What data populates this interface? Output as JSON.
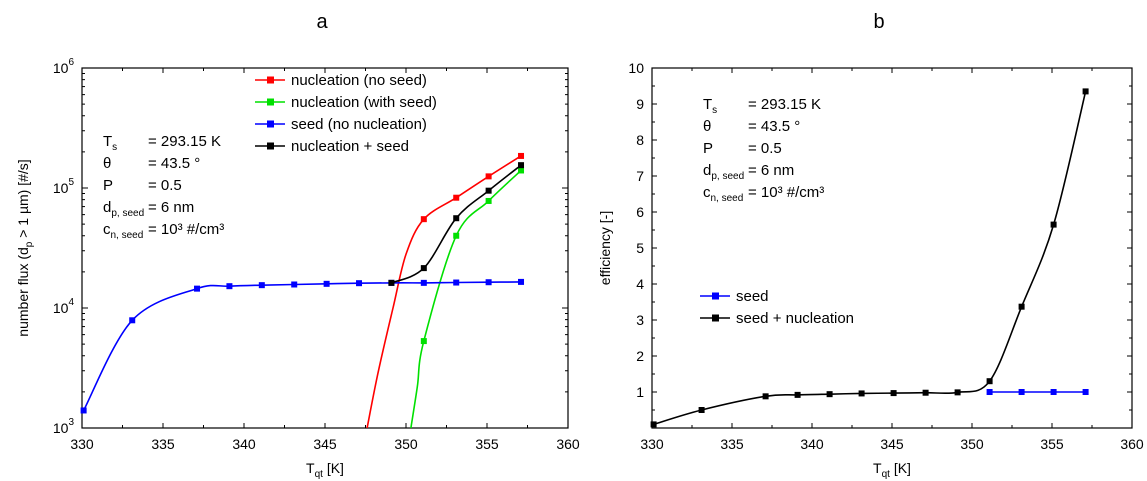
{
  "panel_a_letter": "a",
  "panel_b_letter": "b",
  "chart_data": [
    {
      "type": "line",
      "panel": "a",
      "xlabel": "T_qt  [K]",
      "ylabel": "number flux (d_p > 1 µm)   [#/s]",
      "ylog": true,
      "xlim": [
        330,
        360
      ],
      "ylim": [
        1000,
        1000000
      ],
      "xticks": [
        "330",
        "335",
        "340",
        "345",
        "350",
        "355",
        "360"
      ],
      "yticks": [
        {
          "base": "10",
          "exp": "3"
        },
        {
          "base": "10",
          "exp": "4"
        },
        {
          "base": "10",
          "exp": "5"
        },
        {
          "base": "10",
          "exp": "6"
        }
      ],
      "params": [
        {
          "sym": "T",
          "sub": "s",
          "eq": "= 293.15 K"
        },
        {
          "sym": "θ",
          "sub": "",
          "eq": "= 43.5 °"
        },
        {
          "sym": "P",
          "sub": "",
          "eq": "= 0.5"
        },
        {
          "sym": "d",
          "sub": "p, seed",
          "eq": "= 6 nm"
        },
        {
          "sym": "c",
          "sub": "n, seed",
          "eq": "= 10³ #/cm³"
        }
      ],
      "series": [
        {
          "name": "nucleation (no seed)",
          "color": "#ff0000",
          "x": [
            351.1,
            353.1,
            355.1,
            357.1
          ],
          "y": [
            55000,
            83000,
            125000,
            185000
          ],
          "curve_from": [
            [
              347.6,
              1000
            ],
            [
              348.3,
              3000
            ],
            [
              349.2,
              10000
            ],
            [
              350.0,
              28000
            ]
          ]
        },
        {
          "name": "nucleation (with seed)",
          "color": "#00e000",
          "x": [
            351.1,
            353.1,
            355.1,
            357.1
          ],
          "y": [
            5300,
            40000,
            78000,
            140000
          ],
          "curve_from": [
            [
              350.3,
              1000
            ],
            [
              350.7,
              2200
            ]
          ]
        },
        {
          "name": "seed (no nucleation)",
          "color": "#0000ff",
          "x": [
            330.1,
            333.1,
            337.1,
            339.1,
            341.1,
            343.1,
            345.1,
            347.1,
            349.1,
            351.1,
            353.1,
            355.1,
            357.1
          ],
          "y": [
            1400,
            7900,
            14500,
            15200,
            15500,
            15700,
            15900,
            16100,
            16200,
            16200,
            16300,
            16400,
            16500
          ]
        },
        {
          "name": "nucleation + seed",
          "color": "#000000",
          "x": [
            349.1,
            351.1,
            353.1,
            355.1,
            357.1
          ],
          "y": [
            16200,
            21500,
            56000,
            95000,
            155000
          ]
        }
      ]
    },
    {
      "type": "line",
      "panel": "b",
      "xlabel": "T_qt  [K]",
      "ylabel": "efficiency  [-]",
      "xlim": [
        330,
        360
      ],
      "ylim": [
        0,
        10
      ],
      "xticks": [
        "330",
        "335",
        "340",
        "345",
        "350",
        "355",
        "360"
      ],
      "yticks": [
        "1",
        "2",
        "3",
        "4",
        "5",
        "6",
        "7",
        "8",
        "9",
        "10"
      ],
      "params": [
        {
          "sym": "T",
          "sub": "s",
          "eq": "= 293.15 K"
        },
        {
          "sym": "θ",
          "sub": "",
          "eq": "= 43.5 °"
        },
        {
          "sym": "P",
          "sub": "",
          "eq": "= 0.5"
        },
        {
          "sym": "d",
          "sub": "p, seed",
          "eq": "= 6 nm"
        },
        {
          "sym": "c",
          "sub": "n, seed",
          "eq": "= 10³ #/cm³"
        }
      ],
      "series": [
        {
          "name": "seed",
          "color": "#0000ff",
          "x": [
            351.1,
            353.1,
            355.1,
            357.1
          ],
          "y": [
            1.0,
            1.0,
            1.0,
            1.0
          ]
        },
        {
          "name": "seed + nucleation",
          "color": "#000000",
          "x": [
            330.1,
            333.1,
            337.1,
            339.1,
            341.1,
            343.1,
            345.1,
            347.1,
            349.1,
            351.1,
            353.1,
            355.1,
            357.1
          ],
          "y": [
            0.1,
            0.5,
            0.88,
            0.92,
            0.94,
            0.96,
            0.97,
            0.98,
            0.99,
            1.3,
            3.37,
            5.65,
            9.35
          ]
        }
      ]
    }
  ]
}
